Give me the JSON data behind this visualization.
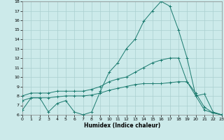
{
  "xlabel": "Humidex (Indice chaleur)",
  "xlim": [
    0,
    23
  ],
  "ylim": [
    6,
    18
  ],
  "xtick_labels": [
    "0",
    "1",
    "2",
    "3",
    "4",
    "5",
    "6",
    "7",
    "8",
    "9",
    "10",
    "11",
    "12",
    "13",
    "14",
    "15",
    "16",
    "17",
    "18",
    "19",
    "20",
    "21",
    "22",
    "23"
  ],
  "yticks": [
    6,
    7,
    8,
    9,
    10,
    11,
    12,
    13,
    14,
    15,
    16,
    17,
    18
  ],
  "bg_color": "#cceaea",
  "grid_color": "#aacfcf",
  "line_color": "#1a7a6e",
  "line1_y": [
    6.5,
    7.8,
    7.8,
    6.3,
    7.2,
    7.5,
    6.3,
    6.0,
    6.3,
    8.5,
    10.5,
    11.5,
    13.0,
    14.0,
    15.9,
    17.0,
    18.0,
    17.5,
    15.0,
    12.0,
    8.0,
    8.2,
    6.3,
    6.0
  ],
  "line2_y": [
    8.0,
    8.3,
    8.3,
    8.3,
    8.5,
    8.5,
    8.5,
    8.5,
    8.7,
    9.0,
    9.5,
    9.8,
    10.0,
    10.5,
    11.0,
    11.5,
    11.8,
    12.0,
    12.0,
    9.5,
    8.0,
    6.5,
    6.2,
    6.0
  ],
  "line3_y": [
    7.5,
    7.8,
    7.8,
    7.8,
    7.9,
    8.0,
    8.0,
    8.0,
    8.1,
    8.3,
    8.6,
    8.8,
    9.0,
    9.2,
    9.3,
    9.3,
    9.3,
    9.4,
    9.5,
    9.5,
    8.3,
    6.8,
    6.2,
    6.0
  ]
}
